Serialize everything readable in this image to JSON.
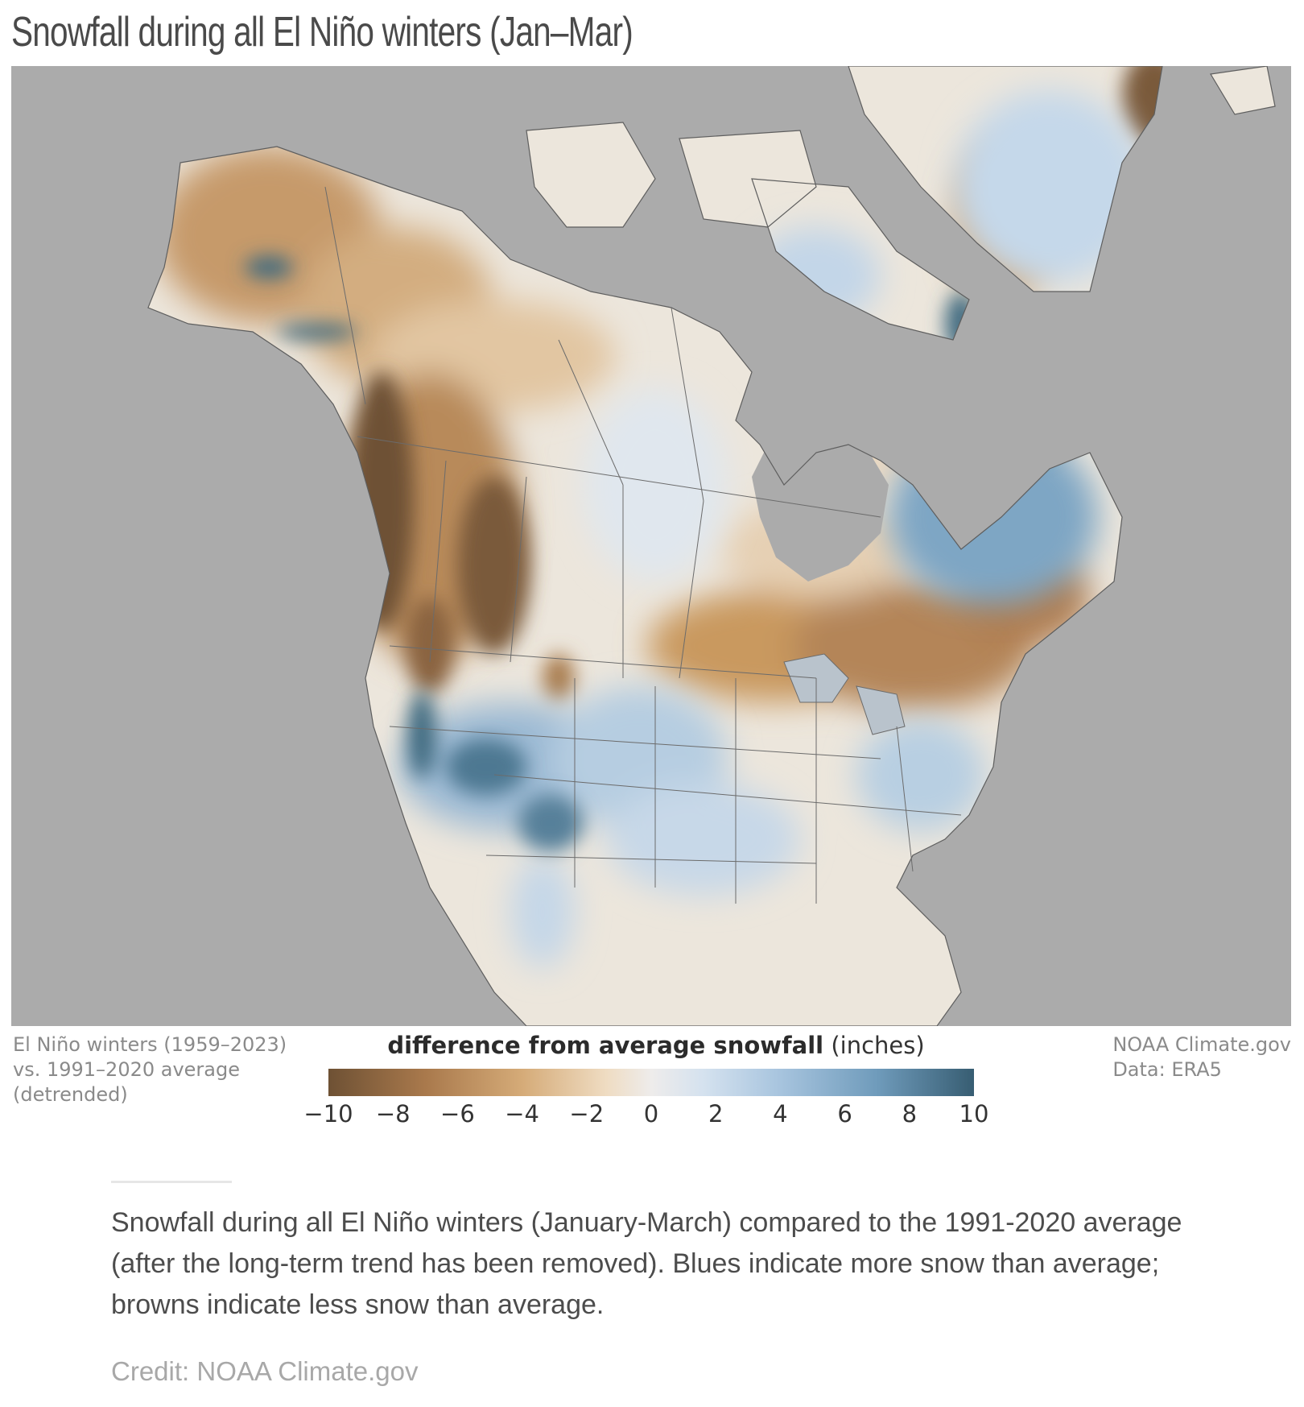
{
  "title": "Snowfall during all El Niño winters (Jan–Mar)",
  "legend": {
    "left_note": [
      "El Niño winters (1959–2023)",
      "vs. 1991–2020 average",
      "(detrended)"
    ],
    "title_bold": "difference from average snowfall",
    "title_unit": "(inches)",
    "ticks": [
      "−10",
      "−8",
      "−6",
      "−4",
      "−2",
      "0",
      "2",
      "4",
      "6",
      "8",
      "10"
    ],
    "tick_values": [
      -10,
      -8,
      -6,
      -4,
      -2,
      0,
      2,
      4,
      6,
      8,
      10
    ],
    "range": [
      -10,
      10
    ],
    "colors": {
      "min": "#6e5134",
      "mid": "#eeeceb",
      "max": "#375d72"
    },
    "source_lines": [
      "NOAA Climate.gov",
      "Data: ERA5"
    ]
  },
  "map": {
    "ocean_color": "#ababab",
    "region": "North America and Greenland"
  },
  "caption": "Snowfall during all El Niño winters (January-March) compared to the 1991-2020 average (after the long-term trend has been removed). Blues indicate more snow than average; browns indicate less snow than average.",
  "credit": "Credit: NOAA Climate.gov"
}
